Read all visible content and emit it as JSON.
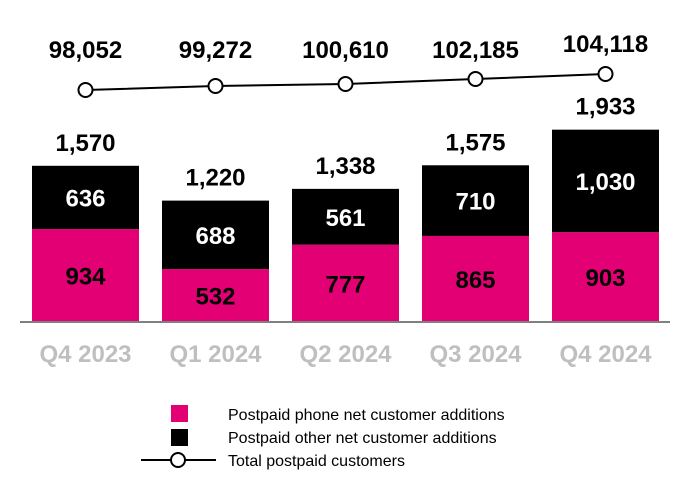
{
  "chart_data": {
    "type": "bar",
    "stacked": true,
    "categories": [
      "Q4 2023",
      "Q1 2024",
      "Q2 2024",
      "Q3 2024",
      "Q4 2024"
    ],
    "series": [
      {
        "name": "Postpaid phone net customer additions",
        "values": [
          934,
          532,
          777,
          865,
          903
        ],
        "color": "#E20074"
      },
      {
        "name": "Postpaid other net customer additions",
        "values": [
          636,
          688,
          561,
          710,
          1030
        ],
        "color": "#000000"
      }
    ],
    "totals": [
      1570,
      1220,
      1338,
      1575,
      1933
    ],
    "totals_labels": [
      "1,570",
      "1,220",
      "1,338",
      "1,575",
      "1,933"
    ],
    "phone_labels": [
      "934",
      "532",
      "777",
      "865",
      "903"
    ],
    "other_labels": [
      "636",
      "688",
      "561",
      "710",
      "1,030"
    ],
    "line": {
      "name": "Total postpaid customers",
      "values": [
        98052,
        99272,
        100610,
        102185,
        104118
      ],
      "labels": [
        "98,052",
        "99,272",
        "100,610",
        "102,185",
        "104,118"
      ],
      "color": "#000000"
    },
    "ylim": [
      0,
      2000
    ],
    "legend_position": "bottom-center",
    "colors": {
      "axis": "#808080",
      "tick_label": "#BFBFBF",
      "phone": "#E20074",
      "other": "#000000"
    }
  }
}
